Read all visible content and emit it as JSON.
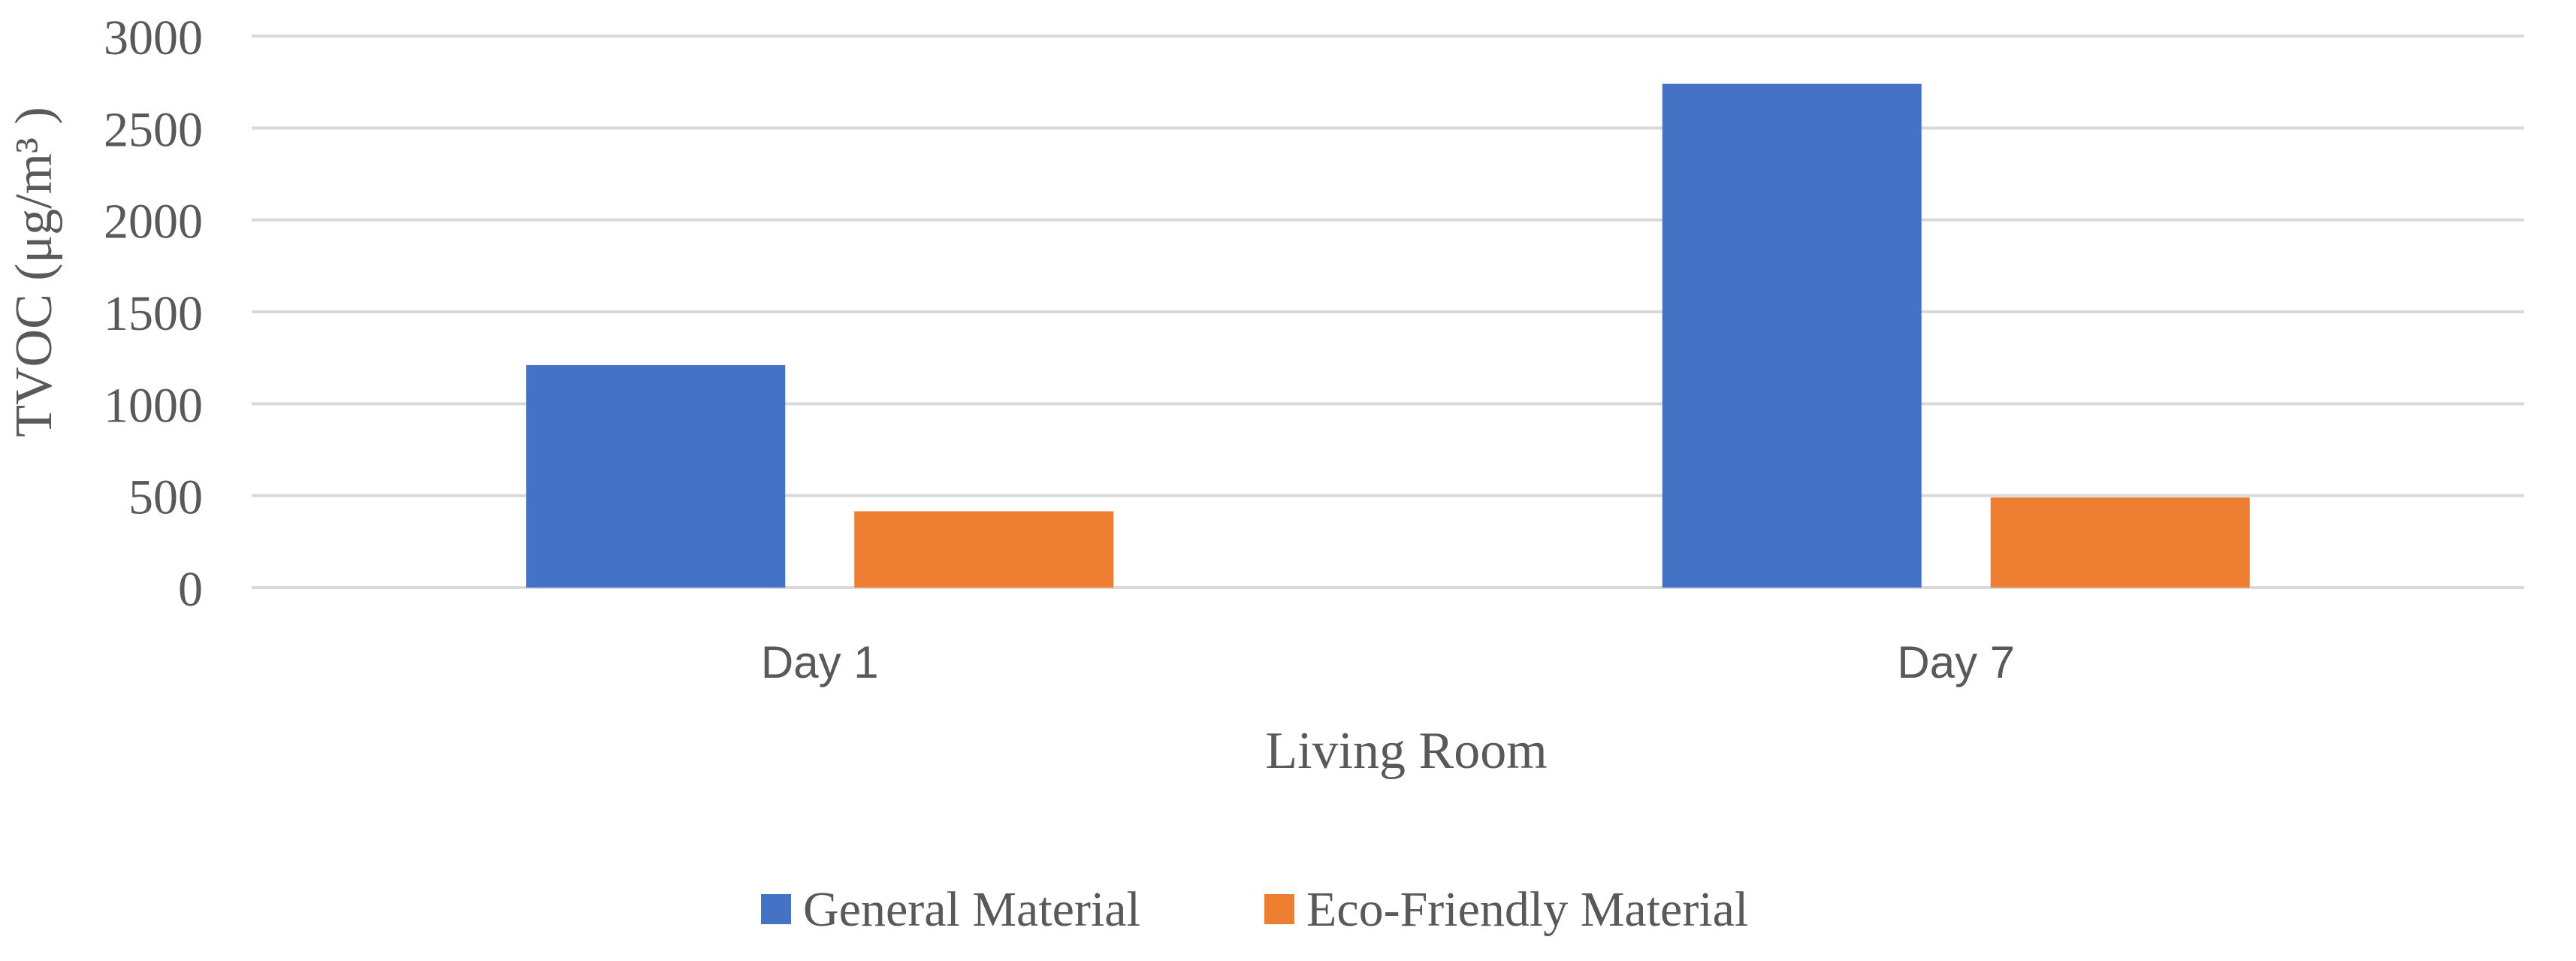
{
  "chart_data": {
    "type": "bar",
    "title": "",
    "xlabel": "Living Room",
    "ylabel": "TVOC (μg/m³ )",
    "categories": [
      "Day 1",
      "Day 7"
    ],
    "series": [
      {
        "name": "General Material",
        "values": [
          1210,
          2740
        ],
        "color": "#4472C4"
      },
      {
        "name": "Eco-Friendly Material",
        "values": [
          415,
          490
        ],
        "color": "#ED7D31"
      }
    ],
    "ylim": [
      0,
      3000
    ],
    "yticks": [
      0,
      500,
      1000,
      1500,
      2000,
      2500,
      3000
    ],
    "grid": true,
    "legend_position": "bottom"
  }
}
